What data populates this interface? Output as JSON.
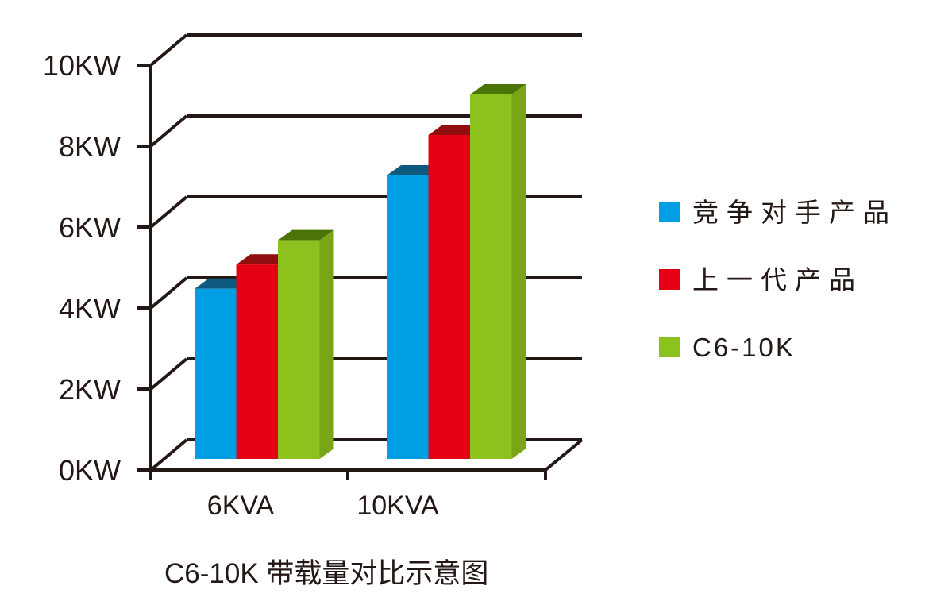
{
  "chart_data": {
    "type": "bar",
    "projection": "3d",
    "title": "C6-10K 带载量对比示意图",
    "categories": [
      "6KVA",
      "10KVA"
    ],
    "series": [
      {
        "name": "竞争对手产品",
        "values": [
          4.2,
          7.0
        ],
        "color": "#009FE3",
        "top_color": "#0E5A7F",
        "side_color": "#1C6E96"
      },
      {
        "name": "上一代产品",
        "values": [
          4.8,
          8.0
        ],
        "color": "#E60014",
        "top_color": "#920D10",
        "side_color": "#B01013"
      },
      {
        "name": "C6-10K",
        "values": [
          5.4,
          9.0
        ],
        "color": "#8CC21E",
        "top_color": "#4A7406",
        "side_color": "#79A517"
      }
    ],
    "yticks": [
      {
        "value": 0,
        "label": "0KW"
      },
      {
        "value": 2,
        "label": "2KW"
      },
      {
        "value": 4,
        "label": "4KW"
      },
      {
        "value": 6,
        "label": "6KW"
      },
      {
        "value": 8,
        "label": "8KW"
      },
      {
        "value": 10,
        "label": "10KW"
      }
    ],
    "ylim": [
      0,
      10
    ],
    "unit": "KW",
    "grid": true,
    "legend_position": "right",
    "ink_color": "#231815"
  }
}
